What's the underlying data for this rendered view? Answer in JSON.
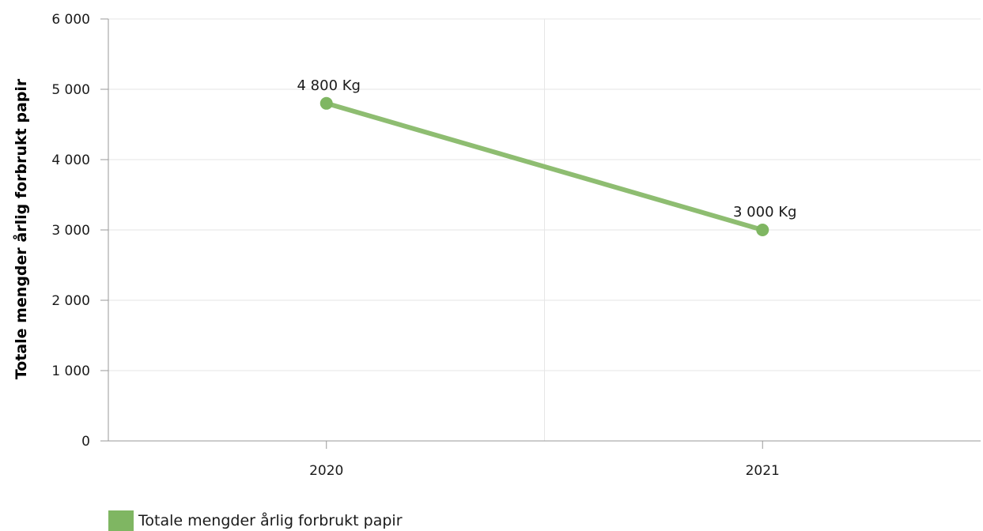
{
  "chart_data": {
    "type": "line",
    "ylabel": "Totale mengder årlig forbrukt papir",
    "categories": [
      "2020",
      "2021"
    ],
    "ylim": [
      0,
      6000
    ],
    "yticks": [
      0,
      1000,
      2000,
      3000,
      4000,
      5000,
      6000
    ],
    "ytick_labels": [
      "0",
      "1 000",
      "2 000",
      "3 000",
      "4 000",
      "5 000",
      "6 000"
    ],
    "series": [
      {
        "name": "Totale mengder årlig forbrukt papir",
        "values": [
          4800,
          3000
        ],
        "data_labels": [
          "4 800 Kg",
          "3 000 Kg"
        ],
        "color": "#8ebd71",
        "marker_color": "#7fb662"
      }
    ],
    "grid": true,
    "legend_position": "bottom-left"
  }
}
